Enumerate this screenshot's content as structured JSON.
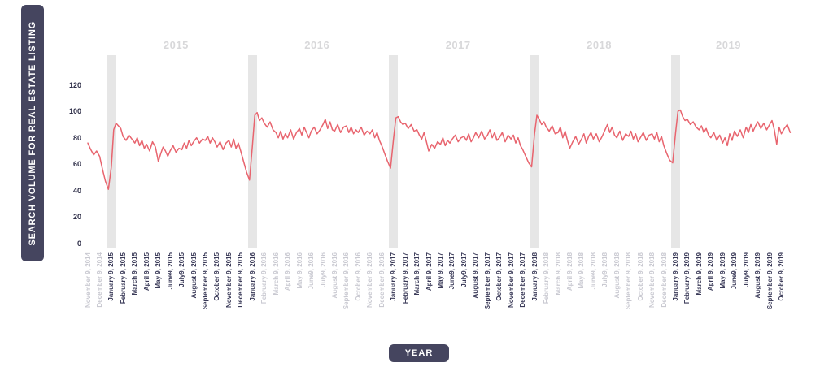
{
  "y_axis": {
    "title": "SEARCH VOLUME FOR REAL ESTATE LISTING",
    "ticks": [
      0,
      20,
      40,
      60,
      80,
      100,
      120
    ]
  },
  "x_axis": {
    "title": "YEAR",
    "year_labels": [
      "2015",
      "2016",
      "2017",
      "2018",
      "2019"
    ]
  },
  "colors": {
    "line": "#e8646e",
    "badge": "#45455f",
    "band": "#e6e6e6",
    "label_dark": "#3a3a58",
    "label_light": "#c9c9d1",
    "year_label": "#d8d8da"
  },
  "chart_data": {
    "type": "line",
    "title": "",
    "xlabel": "YEAR",
    "ylabel": "SEARCH VOLUME FOR REAL ESTATE LISTING",
    "ylim": [
      0,
      130
    ],
    "yticks": [
      0,
      20,
      40,
      60,
      80,
      100,
      120
    ],
    "grid": false,
    "legend": "none",
    "highlight_band_categories": [
      "January 9, 2015",
      "January 9, 2016",
      "January 9, 2017",
      "January 9, 2018",
      "January 9, 2019"
    ],
    "categories": [
      "November 9, 2014",
      "December 9, 2014",
      "January 9, 2015",
      "February 9, 2015",
      "March 9, 2015",
      "April 9, 2015",
      "May 9, 2015",
      "June9, 2015",
      "July9, 2015",
      "August 9, 2015",
      "September 9, 2015",
      "October 9, 2015",
      "November 9, 2015",
      "December 9, 2015",
      "January 9, 2016",
      "February 9, 2016",
      "March 9, 2016",
      "April 9, 2016",
      "May 9, 2016",
      "June9, 2016",
      "July9, 2016",
      "August 9, 2016",
      "September 9, 2016",
      "October 9, 2016",
      "November 9, 2016",
      "December 9, 2016",
      "January 9, 2017",
      "February 9, 2017",
      "March 9, 2017",
      "April 9, 2017",
      "May 9, 2017",
      "June9, 2017",
      "July9, 2017",
      "August 9, 2017",
      "September 9, 2017",
      "October 9, 2017",
      "November 9, 2017",
      "December 9, 2017",
      "January 9, 2018",
      "February 9, 2018",
      "March 9, 2018",
      "April 9, 2018",
      "May 9, 2018",
      "June9, 2018",
      "July9, 2018",
      "August 9, 2018",
      "September 9, 2018",
      "October 9, 2018",
      "November 9, 2018",
      "December 9, 2018",
      "January 9, 2019",
      "February 9, 2019",
      "March 9, 2019",
      "April 9, 2019",
      "May 9, 2019",
      "June9, 2019",
      "July9, 2019",
      "August 9, 2019",
      "September 9, 2019",
      "October 9, 2019"
    ],
    "series": [
      {
        "name": "search volume for real estate listing",
        "weekly_values_per_month": [
          [
            76,
            71,
            67,
            70
          ],
          [
            66,
            56,
            47,
            41
          ],
          [
            58,
            86,
            91,
            89,
            87
          ],
          [
            81,
            78,
            82,
            79
          ],
          [
            76,
            80,
            74,
            78,
            72
          ],
          [
            75,
            70,
            77,
            73
          ],
          [
            62,
            68,
            73,
            70,
            66
          ],
          [
            70,
            74,
            69,
            72
          ],
          [
            71,
            76,
            72,
            78,
            74
          ],
          [
            77,
            80,
            76,
            79
          ],
          [
            78,
            81,
            76,
            80,
            77
          ],
          [
            73,
            77,
            71,
            76
          ],
          [
            78,
            73,
            79,
            72,
            76
          ],
          [
            70,
            62,
            54,
            48
          ],
          [
            74,
            97,
            99,
            93,
            95
          ],
          [
            91,
            88,
            92,
            86
          ],
          [
            84,
            80,
            85,
            79,
            83
          ],
          [
            80,
            86,
            79,
            84
          ],
          [
            87,
            82,
            88,
            84,
            80
          ],
          [
            85,
            88,
            83,
            86
          ],
          [
            90,
            94,
            87,
            92,
            86
          ],
          [
            85,
            90,
            84,
            88
          ],
          [
            89,
            84,
            88,
            83,
            86
          ],
          [
            84,
            88,
            82,
            85
          ],
          [
            83,
            86,
            80,
            84,
            78
          ],
          [
            74,
            68,
            62,
            57
          ],
          [
            79,
            95,
            96,
            92,
            90
          ],
          [
            91,
            87,
            90,
            85
          ],
          [
            86,
            82,
            79,
            84,
            77
          ],
          [
            70,
            75,
            72,
            77
          ],
          [
            75,
            80,
            74,
            78,
            76
          ],
          [
            79,
            82,
            77,
            80
          ],
          [
            81,
            78,
            83,
            77,
            80
          ],
          [
            84,
            80,
            85,
            79
          ],
          [
            82,
            86,
            80,
            84,
            78
          ],
          [
            80,
            84,
            77,
            82
          ],
          [
            79,
            82,
            76,
            80,
            74
          ],
          [
            71,
            66,
            61,
            58
          ],
          [
            83,
            97,
            94,
            90,
            92
          ],
          [
            88,
            85,
            89,
            83
          ],
          [
            84,
            88,
            80,
            85,
            78
          ],
          [
            72,
            77,
            81,
            75
          ],
          [
            79,
            83,
            76,
            81,
            84
          ],
          [
            79,
            83,
            77,
            81
          ],
          [
            86,
            90,
            84,
            88,
            82
          ],
          [
            80,
            85,
            78,
            83
          ],
          [
            81,
            85,
            79,
            83,
            77
          ],
          [
            80,
            84,
            78,
            82
          ],
          [
            83,
            79,
            84,
            77,
            81
          ],
          [
            74,
            68,
            63,
            61
          ],
          [
            84,
            100,
            101,
            96,
            93
          ],
          [
            94,
            90,
            92,
            88
          ],
          [
            86,
            89,
            84,
            87,
            82
          ],
          [
            80,
            84,
            78,
            82
          ],
          [
            76,
            80,
            74,
            83,
            78
          ],
          [
            85,
            81,
            86,
            80
          ],
          [
            88,
            84,
            90,
            85,
            89
          ],
          [
            92,
            87,
            91,
            86
          ],
          [
            90,
            93,
            86,
            75,
            88
          ],
          [
            83,
            87,
            90,
            84
          ]
        ]
      }
    ]
  }
}
